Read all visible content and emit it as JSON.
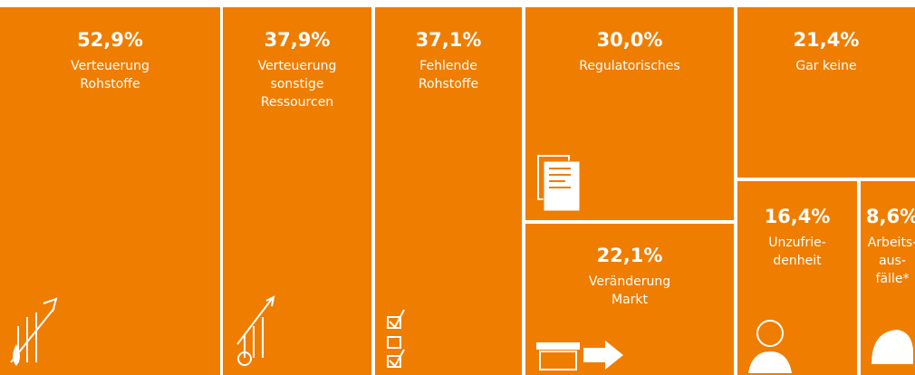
{
  "chart_data": {
    "type": "treemap",
    "color": "#ef7d00",
    "values": [
      52.9,
      37.9,
      37.1,
      30.0,
      21.4,
      22.1,
      16.4,
      8.6
    ],
    "value_labels": [
      "52,9%",
      "37,9%",
      "37,1%",
      "30,0%",
      "21,4%",
      "22,1%",
      "16,4%",
      "8,6%"
    ],
    "labels": [
      [
        "Verteuerung",
        "Rohstoffe"
      ],
      [
        "Verteuerung",
        "sonstige",
        "Ressourcen"
      ],
      [
        "Fehlende",
        "Rohstoffe"
      ],
      [
        "Regulatorisches"
      ],
      [
        "Gar keine"
      ],
      [
        "Veränderung",
        "Markt"
      ],
      [
        "Unzufrie-",
        "denheit"
      ],
      [
        "Arbeits-",
        "aus-",
        "fälle*"
      ]
    ]
  }
}
